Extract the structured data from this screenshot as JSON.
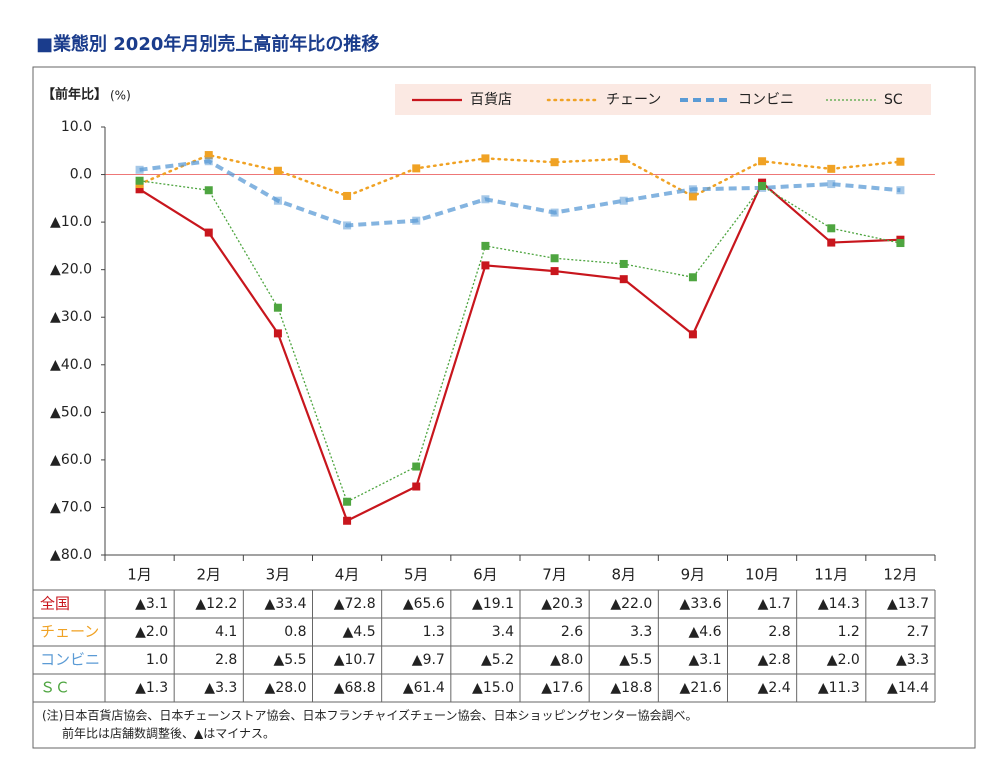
{
  "chart_data": {
    "type": "line",
    "title": "■業態別 2020年月別売上高前年比の推移",
    "y_label": "【前年比】",
    "y_unit": "(%)",
    "categories": [
      "1月",
      "2月",
      "3月",
      "4月",
      "5月",
      "6月",
      "7月",
      "8月",
      "9月",
      "10月",
      "11月",
      "12月"
    ],
    "ylim": [
      -80,
      10
    ],
    "yticks": [
      {
        "value": 10,
        "label": "10.0"
      },
      {
        "value": 0,
        "label": "0.0"
      },
      {
        "value": -10,
        "label": "▲10.0"
      },
      {
        "value": -20,
        "label": "▲20.0"
      },
      {
        "value": -30,
        "label": "▲30.0"
      },
      {
        "value": -40,
        "label": "▲40.0"
      },
      {
        "value": -50,
        "label": "▲50.0"
      },
      {
        "value": -60,
        "label": "▲60.0"
      },
      {
        "value": -70,
        "label": "▲70.0"
      },
      {
        "value": -80,
        "label": "▲80.0"
      }
    ],
    "legend_position": "top-right",
    "series": [
      {
        "name": "百貨店",
        "table_label": "全国",
        "color": "#c8161d",
        "line_style": "solid",
        "values": [
          -3.1,
          -12.2,
          -33.4,
          -72.8,
          -65.6,
          -19.1,
          -20.3,
          -22.0,
          -33.6,
          -1.7,
          -14.3,
          -13.7
        ],
        "value_labels": [
          "▲3.1",
          "▲12.2",
          "▲33.4",
          "▲72.8",
          "▲65.6",
          "▲19.1",
          "▲20.3",
          "▲22.0",
          "▲33.6",
          "▲1.7",
          "▲14.3",
          "▲13.7"
        ]
      },
      {
        "name": "チェーン",
        "table_label": "チェーン",
        "color": "#f0a224",
        "line_style": "dotted",
        "values": [
          -2.0,
          4.1,
          0.8,
          -4.5,
          1.3,
          3.4,
          2.6,
          3.3,
          -4.6,
          2.8,
          1.2,
          2.7
        ],
        "value_labels": [
          "▲2.0",
          "4.1",
          "0.8",
          "▲4.5",
          "1.3",
          "3.4",
          "2.6",
          "3.3",
          "▲4.6",
          "2.8",
          "1.2",
          "2.7"
        ]
      },
      {
        "name": "コンビニ",
        "table_label": "コンビニ",
        "color": "#5b9bd5",
        "line_style": "dashed",
        "values": [
          1.0,
          2.8,
          -5.5,
          -10.7,
          -9.7,
          -5.2,
          -8.0,
          -5.5,
          -3.1,
          -2.8,
          -2.0,
          -3.3
        ],
        "value_labels": [
          "1.0",
          "2.8",
          "▲5.5",
          "▲10.7",
          "▲9.7",
          "▲5.2",
          "▲8.0",
          "▲5.5",
          "▲3.1",
          "▲2.8",
          "▲2.0",
          "▲3.3"
        ]
      },
      {
        "name": "SC",
        "table_label": "ＳＣ",
        "color": "#4ea540",
        "line_style": "thin-dotted",
        "values": [
          -1.3,
          -3.3,
          -28.0,
          -68.8,
          -61.4,
          -15.0,
          -17.6,
          -18.8,
          -21.6,
          -2.4,
          -11.3,
          -14.4
        ],
        "value_labels": [
          "▲1.3",
          "▲3.3",
          "▲28.0",
          "▲68.8",
          "▲61.4",
          "▲15.0",
          "▲17.6",
          "▲18.8",
          "▲21.6",
          "▲2.4",
          "▲11.3",
          "▲14.4"
        ]
      }
    ],
    "notes": [
      "(注)日本百貨店協会、日本チェーンストア協会、日本フランチャイズチェーン協会、日本ショッピングセンター協会調べ。",
      "前年比は店舗数調整後、▲はマイナス。"
    ]
  }
}
